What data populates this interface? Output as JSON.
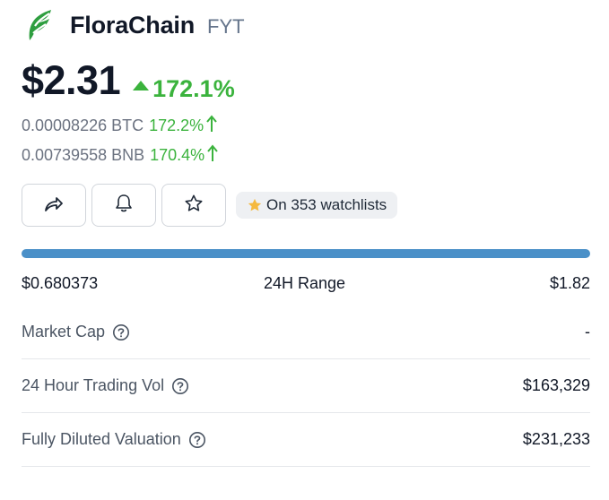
{
  "coin": {
    "name": "FloraChain",
    "symbol": "FYT",
    "price": "$2.31",
    "change": "172.1%"
  },
  "conversions": [
    {
      "amount": "0.00008226 BTC",
      "change": "172.2%"
    },
    {
      "amount": "0.00739558 BNB",
      "change": "170.4%"
    }
  ],
  "watchlist": {
    "label": "On 353 watchlists"
  },
  "range": {
    "low": "$0.680373",
    "label": "24H Range",
    "high": "$1.82"
  },
  "stats": [
    {
      "label": "Market Cap",
      "value": "-"
    },
    {
      "label": "24 Hour Trading Vol",
      "value": "$163,329"
    },
    {
      "label": "Fully Diluted Valuation",
      "value": "$231,233"
    }
  ],
  "colors": {
    "positive": "#3bb33d",
    "range_bar": "#4a90c8",
    "logo": "#2e9e3f",
    "star": "#f5b93f"
  },
  "icons": {
    "logo": "florachain-logo-icon",
    "share": "share-icon",
    "alert": "bell-icon",
    "watch": "star-icon",
    "help": "help-circle-icon"
  }
}
